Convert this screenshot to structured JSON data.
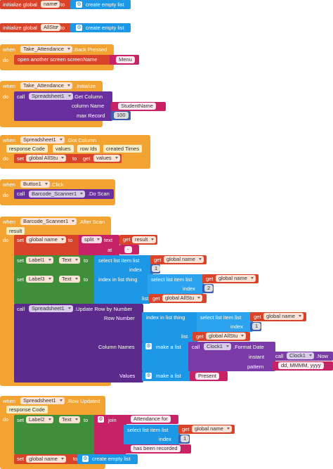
{
  "init1": {
    "prefix": "initialize global",
    "name": "name",
    "to": "to",
    "value": "create empty list"
  },
  "init2": {
    "prefix": "initialize global",
    "name": "AllStu",
    "to": "to",
    "value": "create empty list"
  },
  "ev1": {
    "when": "when",
    "component": "Take_Attendance",
    "event": ".Back Pressed",
    "do": "do",
    "action": "open another screen  screenName",
    "screen": "Menu"
  },
  "ev2": {
    "when": "when",
    "component": "Take_Attendance",
    "event": ".Initialize",
    "do": "do",
    "call": "call",
    "target": "Spreadsheet1",
    "method": ".Get Column",
    "col_label": "column Name",
    "col_value": "StudentName",
    "max_label": "max Record",
    "max_value": "100"
  },
  "ev3": {
    "when": "when",
    "component": "Spreadsheet1",
    "event": ".Got Column",
    "params": [
      "response Code",
      "values",
      "row Ids",
      "created Times"
    ],
    "do": "do",
    "set": "set",
    "var": "global AllStu",
    "to": "to",
    "get": "get",
    "getvar": "values"
  },
  "ev4": {
    "when": "when",
    "component": "Button1",
    "event": ".Click",
    "do": "do",
    "call": "call",
    "target": "Barcode_Scanner1",
    "method": ".Do Scan"
  },
  "ev5": {
    "when": "when",
    "component": "Barcode_Scanner1",
    "event": ".After Scan",
    "param": "result",
    "do": "do",
    "set1": {
      "set": "set",
      "var": "global name",
      "to": "to",
      "split": "split",
      "text": "text",
      "get": "get",
      "getvar": "result",
      "at": "at",
      "sep": "-"
    },
    "set2": {
      "set": "set",
      "comp": "Label1",
      "prop": "Text",
      "to": "to",
      "select": "select list item  list",
      "get": "get",
      "getvar": "global name",
      "index": "index",
      "index_value": "1"
    },
    "set3": {
      "set": "set",
      "comp": "Label3",
      "prop": "Text",
      "to": "to",
      "indexin": "index in list  thing",
      "select": "select list item  list",
      "get": "get",
      "getvar": "global name",
      "index": "index",
      "index_value": "2",
      "list": "list",
      "get2": "get",
      "getvar2": "global AllStu"
    },
    "call": {
      "call": "call",
      "target": "Spreadsheet1",
      "method": ".Update Row by Number",
      "rownum": "Row Number",
      "indexin": "index in list  thing",
      "select": "select list item  list",
      "get": "get",
      "getvar": "global name",
      "index": "index",
      "index_value": "1",
      "list": "list",
      "get2": "get",
      "getvar2": "global AllStu",
      "colnames": "Column Names",
      "makelist": "make a list",
      "call2": "call",
      "clock": "Clock1",
      "format": ".Format Date",
      "instant": "instant",
      "call3": "call",
      "clock2": "Clock1",
      "now": ".Now",
      "pattern": "pattern",
      "pattern_value": "dd, MMMM, yyyy",
      "values": "Values",
      "makelist2": "make a list",
      "present": "Present"
    }
  },
  "ev6": {
    "when": "when",
    "component": "Spreadsheet1",
    "event": ".Row Updated",
    "param": "response Code",
    "do": "do",
    "set": "set",
    "comp": "Label2",
    "prop": "Text",
    "to": "to",
    "join": "join",
    "att": "Attendance for",
    "select": "select list item  list",
    "get": "get",
    "getvar": "global name",
    "index": "index",
    "index_value": "1",
    "recorded": "has been recorded",
    "set2": "set",
    "var2": "global name",
    "to2": "to",
    "empty": "create empty list"
  }
}
